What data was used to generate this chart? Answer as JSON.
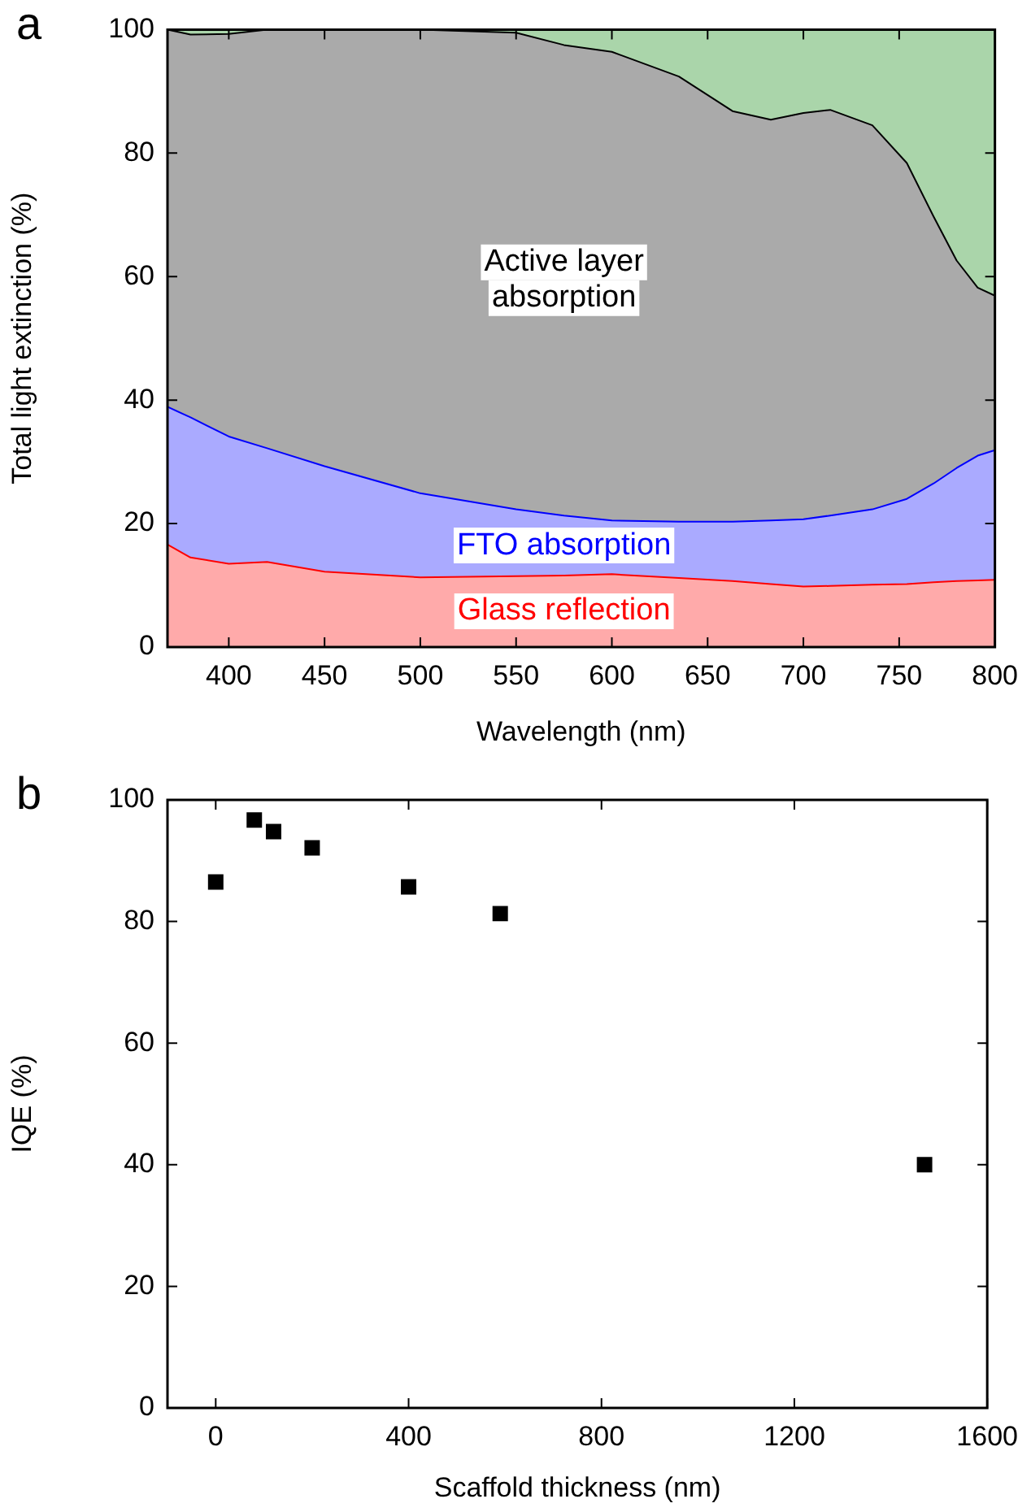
{
  "chart_data": [
    {
      "type": "area",
      "stacked": true,
      "xlabel": "Wavelength (nm)",
      "ylabel": "Total light extinction (%)",
      "annotations": [
        "a"
      ],
      "x": [
        368,
        380,
        400,
        420,
        450,
        500,
        550,
        575,
        600,
        635,
        663,
        683,
        700,
        714,
        736,
        754,
        768,
        780,
        791,
        800
      ],
      "xlim": [
        368,
        800
      ],
      "xticks": [
        400,
        450,
        500,
        550,
        600,
        650,
        700,
        750,
        800
      ],
      "ylim": [
        0,
        100
      ],
      "yticks": [
        0,
        20,
        40,
        60,
        80,
        100
      ],
      "series": [
        {
          "name": "Glass reflection",
          "color": "#ff0000",
          "values": [
            16.6,
            14.5,
            13.5,
            13.8,
            12.2,
            11.3,
            11.5,
            11.6,
            11.8,
            11.2,
            10.7,
            10.2,
            9.8,
            9.9,
            10.1,
            10.2,
            10.5,
            10.7,
            10.8,
            10.9
          ]
        },
        {
          "name": "FTO absorption",
          "color": "#0000ff",
          "values": [
            22.3,
            22.7,
            20.6,
            18.4,
            17.1,
            13.6,
            10.8,
            9.7,
            8.7,
            9.1,
            9.6,
            10.3,
            10.9,
            11.4,
            12.2,
            13.8,
            16,
            18.3,
            20.2,
            21.0
          ]
        },
        {
          "name": "Active layer absorption",
          "color": "#000000",
          "values": [
            61.1,
            62.0,
            65.2,
            67.8,
            70.7,
            75.1,
            77.2,
            76.2,
            75.9,
            72.1,
            66.5,
            64.9,
            65.8,
            65.7,
            62.2,
            54.4,
            43.2,
            33.6,
            27.2,
            25.0
          ]
        },
        {
          "color": "#008000",
          "values": [
            0,
            0.8,
            0.7,
            0,
            0,
            0,
            0.5,
            2.5,
            3.6,
            7.6,
            13.2,
            14.6,
            13.5,
            13,
            15.5,
            21.6,
            30.3,
            37.4,
            41.8,
            43.1
          ]
        }
      ]
    },
    {
      "type": "scatter",
      "xlabel": "Scaffold thickness (nm)",
      "ylabel": "IQE (%)",
      "annotations": [
        "b"
      ],
      "marker": "square",
      "x": [
        0,
        80,
        120,
        200,
        400,
        590,
        1470
      ],
      "values": [
        86.5,
        96.7,
        94.8,
        92.1,
        85.7,
        81.3,
        40.0
      ],
      "color": "#000000",
      "xlim": [
        -100,
        1600
      ],
      "xticks": [
        0,
        400,
        800,
        1200,
        1600
      ],
      "ylim": [
        0,
        100
      ],
      "yticks": [
        0,
        20,
        40,
        60,
        80,
        100
      ]
    }
  ]
}
